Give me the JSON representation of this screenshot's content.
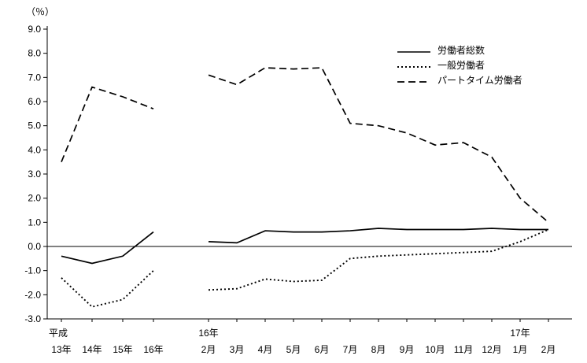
{
  "chart_data": {
    "type": "line",
    "title": "",
    "ylabel": "（％）",
    "xlabel": "",
    "ylim": [
      -3.0,
      9.0
    ],
    "ytick_step": 1.0,
    "yticks": [
      "9.0",
      "8.0",
      "7.0",
      "6.0",
      "5.0",
      "4.0",
      "3.0",
      "2.0",
      "1.0",
      "0.0",
      "-1.0",
      "-2.0",
      "-3.0"
    ],
    "grid": false,
    "legend_position": "top-right-inside",
    "line_color": "#000000",
    "x_groups": [
      {
        "era_label": "平成",
        "categories": [
          "13年",
          "14年",
          "15年",
          "16年"
        ]
      },
      {
        "era_label_start": "16年",
        "era_label_late": "17年",
        "era_label_late_index": 11,
        "categories": [
          "2月",
          "3月",
          "4月",
          "5月",
          "6月",
          "7月",
          "8月",
          "9月",
          "10月",
          "11月",
          "12月",
          "1月",
          "2月"
        ]
      }
    ],
    "series": [
      {
        "name": "労働者総数",
        "style": "solid",
        "annual": [
          -0.4,
          -0.7,
          -0.4,
          0.6
        ],
        "monthly": [
          0.2,
          0.15,
          0.65,
          0.6,
          0.6,
          0.65,
          0.75,
          0.7,
          0.7,
          0.7,
          0.75,
          0.7,
          0.7
        ]
      },
      {
        "name": "一般労働者",
        "style": "dotted",
        "annual": [
          -1.3,
          -2.5,
          -2.2,
          -1.0
        ],
        "monthly": [
          -1.8,
          -1.75,
          -1.35,
          -1.45,
          -1.4,
          -0.5,
          -0.4,
          -0.35,
          -0.3,
          -0.25,
          -0.2,
          0.2,
          0.7
        ]
      },
      {
        "name": "パートタイム労働者",
        "style": "dashed",
        "annual": [
          3.5,
          6.6,
          6.2,
          5.7
        ],
        "monthly": [
          7.1,
          6.7,
          7.4,
          7.35,
          7.4,
          5.1,
          5.0,
          4.7,
          4.2,
          4.3,
          3.7,
          2.0,
          1.0
        ]
      }
    ]
  }
}
